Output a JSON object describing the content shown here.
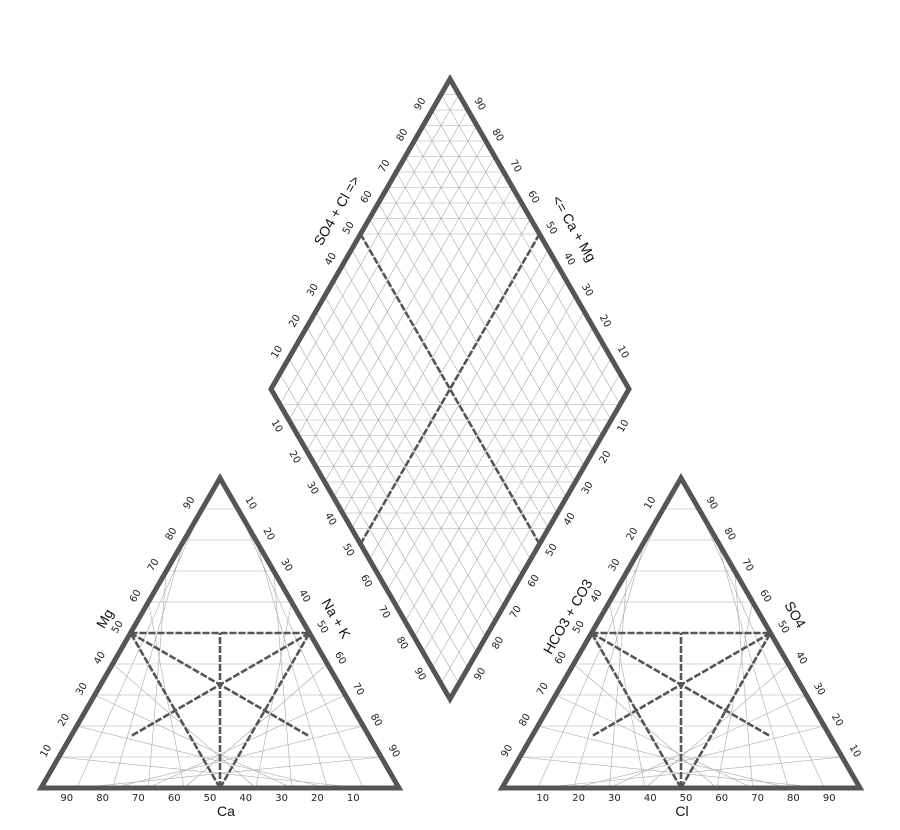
{
  "axis_labels": {
    "cation_bottom": "Ca",
    "cation_left": "Mg",
    "cation_right": "Na + K",
    "anion_bottom": "Cl",
    "anion_left": "HCO3 + CO3",
    "anion_right": "SO4",
    "diamond_left": "SO4 + Cl =>",
    "diamond_right": "<= Ca + Mg"
  },
  "ticks": {
    "cation_bottom": [
      "90",
      "80",
      "70",
      "60",
      "50",
      "40",
      "30",
      "20",
      "10"
    ],
    "cation_left": [
      "10",
      "20",
      "30",
      "40",
      "50",
      "60",
      "70",
      "80",
      "90"
    ],
    "cation_right": [
      "10",
      "20",
      "30",
      "40",
      "50",
      "60",
      "70",
      "80",
      "90"
    ],
    "anion_bottom": [
      "10",
      "20",
      "30",
      "40",
      "50",
      "60",
      "70",
      "80",
      "90"
    ],
    "anion_left": [
      "90",
      "80",
      "70",
      "60",
      "50",
      "40",
      "30",
      "20",
      "10"
    ],
    "anion_right": [
      "90",
      "80",
      "70",
      "60",
      "50",
      "40",
      "30",
      "20",
      "10"
    ],
    "diamond_upper_left": [
      "10",
      "20",
      "30",
      "40",
      "50",
      "60",
      "70",
      "80",
      "90"
    ],
    "diamond_upper_right": [
      "90",
      "80",
      "70",
      "60",
      "50",
      "40",
      "30",
      "20",
      "10"
    ],
    "diamond_lower_left": [
      "10",
      "20",
      "30",
      "40",
      "50",
      "60",
      "70",
      "80",
      "90"
    ],
    "diamond_lower_right": [
      "10",
      "20",
      "30",
      "40",
      "50",
      "60",
      "70",
      "80",
      "90"
    ]
  },
  "style": {
    "frame_color": "#555555",
    "grid_color": "#a9a9a9"
  }
}
